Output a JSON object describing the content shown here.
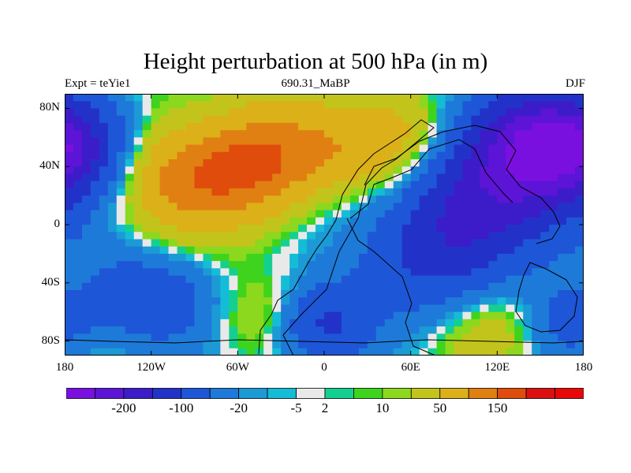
{
  "figure": {
    "title": "Height perturbation at 500 hPa (in m)",
    "left_subtitle": "Expt = teYie1",
    "center_subtitle": "690.31_MaBP",
    "right_subtitle": "DJF"
  },
  "chart_data": {
    "type": "heatmap",
    "projection": "cylindrical-equidistant",
    "xlim": [
      -180,
      180
    ],
    "ylim": [
      -90,
      90
    ],
    "x_ticks": [
      {
        "value": -180,
        "label": "180"
      },
      {
        "value": -120,
        "label": "120W"
      },
      {
        "value": -60,
        "label": "60W"
      },
      {
        "value": 0,
        "label": "0"
      },
      {
        "value": 60,
        "label": "60E"
      },
      {
        "value": 120,
        "label": "120E"
      },
      {
        "value": 180,
        "label": "180"
      }
    ],
    "y_ticks": [
      {
        "value": 80,
        "label": "80N"
      },
      {
        "value": 40,
        "label": "40N"
      },
      {
        "value": 0,
        "label": "0"
      },
      {
        "value": -40,
        "label": "40S"
      },
      {
        "value": -80,
        "label": "80S"
      }
    ],
    "field_features": [
      {
        "kind": "high",
        "lon": -105,
        "lat": 38,
        "radius": 32,
        "value": 130
      },
      {
        "kind": "high",
        "lon": -50,
        "lat": 40,
        "radius": 24,
        "value": 110
      },
      {
        "kind": "high",
        "lon": 0,
        "lat": 45,
        "radius": 26,
        "value": 95
      },
      {
        "kind": "high",
        "lon": 58,
        "lat": 60,
        "radius": 26,
        "value": 95
      },
      {
        "kind": "high",
        "lon": 120,
        "lat": -70,
        "radius": 22,
        "value": 55
      },
      {
        "kind": "high",
        "lon": -35,
        "lat": -62,
        "radius": 20,
        "value": 55
      },
      {
        "kind": "low",
        "lon": 130,
        "lat": 40,
        "radius": 38,
        "value": -210
      },
      {
        "kind": "low",
        "lon": 160,
        "lat": 55,
        "radius": 20,
        "value": -110
      },
      {
        "kind": "low",
        "lon": -160,
        "lat": 55,
        "radius": 26,
        "value": -110
      },
      {
        "kind": "low",
        "lon": 75,
        "lat": -22,
        "radius": 32,
        "value": -100
      },
      {
        "kind": "low",
        "lon": -120,
        "lat": -50,
        "radius": 25,
        "value": -90
      },
      {
        "kind": "low",
        "lon": -5,
        "lat": -68,
        "radius": 20,
        "value": -120
      },
      {
        "kind": "low",
        "lon": 0,
        "lat": 28,
        "radius": 22,
        "value": -45
      },
      {
        "kind": "low",
        "lon": 168,
        "lat": -68,
        "radius": 18,
        "value": -70
      },
      {
        "kind": "low",
        "lon": -85,
        "lat": 65,
        "radius": 18,
        "value": -30
      }
    ],
    "colorbar": {
      "boundaries": [
        -250,
        -200,
        -150,
        -100,
        -50,
        -20,
        -10,
        -5,
        2,
        5,
        10,
        20,
        50,
        100,
        150,
        200,
        250
      ],
      "colors": [
        "#7a10e0",
        "#5c14d6",
        "#3c1cc8",
        "#2232c8",
        "#1e56d8",
        "#1e7ad8",
        "#1c9ad6",
        "#14bcd6",
        "#e9e9e9",
        "#14d090",
        "#3ed41e",
        "#8cd81e",
        "#c2c41c",
        "#dcb018",
        "#e08012",
        "#e04c0c",
        "#dc1010",
        "#e80808"
      ],
      "labels": [
        {
          "value": -200,
          "label": "-200"
        },
        {
          "value": -100,
          "label": "-100"
        },
        {
          "value": -20,
          "label": "-20"
        },
        {
          "value": -5,
          "label": "-5"
        },
        {
          "value": 2,
          "label": "2"
        },
        {
          "value": 10,
          "label": "10"
        },
        {
          "value": 50,
          "label": "50"
        },
        {
          "value": 150,
          "label": "150"
        }
      ]
    }
  }
}
